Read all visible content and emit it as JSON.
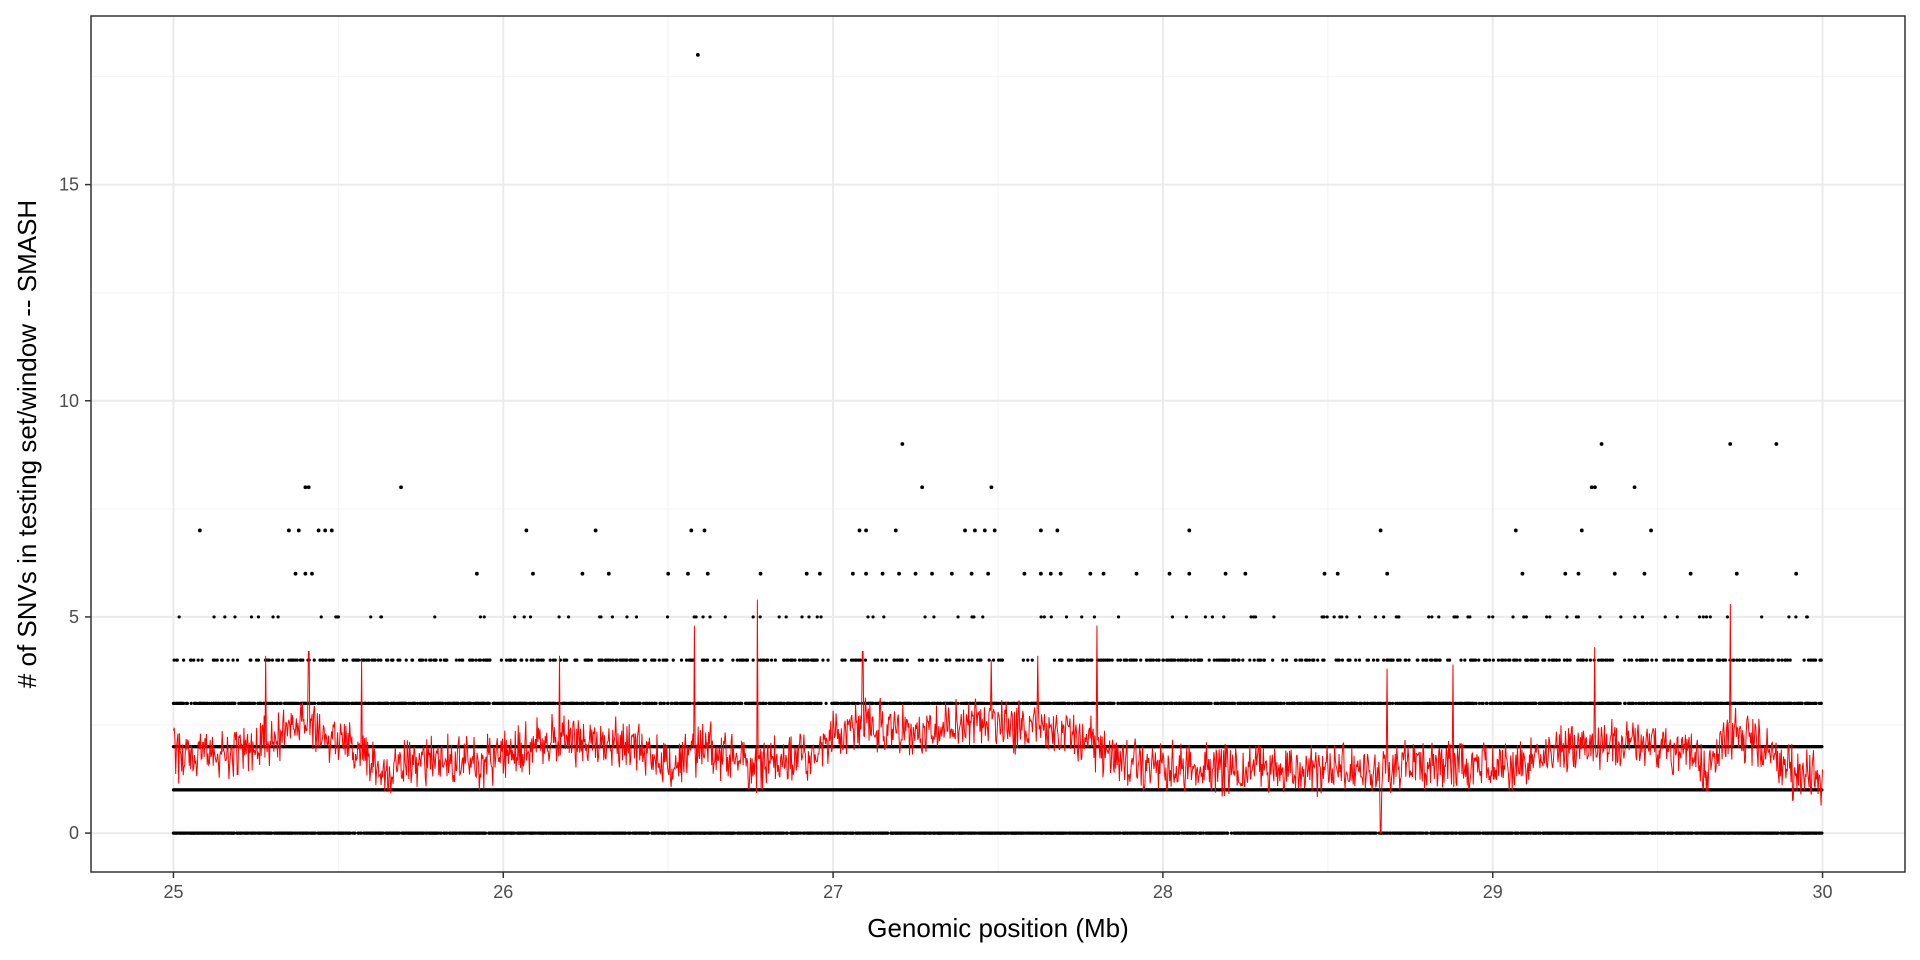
{
  "chart_data": {
    "type": "scatter",
    "title": "",
    "xlabel": "Genomic position (Mb)",
    "ylabel": "# of SNVs in testing set/window -- SMASH",
    "xlim": [
      24.75,
      30.25
    ],
    "ylim": [
      -0.9,
      18.9
    ],
    "x_ticks": [
      25,
      26,
      27,
      28,
      29,
      30
    ],
    "x_tick_labels": [
      "25",
      "26",
      "27",
      "28",
      "29",
      "30"
    ],
    "y_ticks": [
      0,
      5,
      10,
      15
    ],
    "y_tick_labels": [
      "0",
      "5",
      "10",
      "15"
    ],
    "grid": true,
    "legend": "none",
    "colors": {
      "points": "#000000",
      "smooth": "#ff0000",
      "panel_border": "#333333",
      "grid_major": "#ebebeb",
      "grid_minor": "#f5f5f5"
    },
    "series": [
      {
        "kind": "points",
        "description_points": "window SNV counts (integer values 0-9, plus one outlier at 18)",
        "outliers": [
          {
            "x": 26.59,
            "y": 18
          },
          {
            "x": 27.21,
            "y": 9
          },
          {
            "x": 29.33,
            "y": 9
          },
          {
            "x": 29.72,
            "y": 9
          },
          {
            "x": 29.86,
            "y": 9
          },
          {
            "x": 25.4,
            "y": 8
          },
          {
            "x": 25.41,
            "y": 8
          },
          {
            "x": 25.69,
            "y": 8
          },
          {
            "x": 27.27,
            "y": 8
          },
          {
            "x": 27.48,
            "y": 8
          },
          {
            "x": 29.3,
            "y": 8
          },
          {
            "x": 29.31,
            "y": 8
          },
          {
            "x": 29.43,
            "y": 8
          },
          {
            "x": 25.08,
            "y": 7
          },
          {
            "x": 25.35,
            "y": 7
          },
          {
            "x": 25.38,
            "y": 7
          },
          {
            "x": 25.44,
            "y": 7
          },
          {
            "x": 25.46,
            "y": 7
          },
          {
            "x": 25.48,
            "y": 7
          },
          {
            "x": 26.07,
            "y": 7
          },
          {
            "x": 26.28,
            "y": 7
          },
          {
            "x": 26.57,
            "y": 7
          },
          {
            "x": 26.61,
            "y": 7
          },
          {
            "x": 27.08,
            "y": 7
          },
          {
            "x": 27.1,
            "y": 7
          },
          {
            "x": 27.19,
            "y": 7
          },
          {
            "x": 27.4,
            "y": 7
          },
          {
            "x": 27.43,
            "y": 7
          },
          {
            "x": 27.46,
            "y": 7
          },
          {
            "x": 27.49,
            "y": 7
          },
          {
            "x": 27.63,
            "y": 7
          },
          {
            "x": 27.68,
            "y": 7
          },
          {
            "x": 28.08,
            "y": 7
          },
          {
            "x": 28.66,
            "y": 7
          },
          {
            "x": 29.07,
            "y": 7
          },
          {
            "x": 29.27,
            "y": 7
          },
          {
            "x": 29.48,
            "y": 7
          },
          {
            "x": 25.37,
            "y": 6
          },
          {
            "x": 25.4,
            "y": 6
          },
          {
            "x": 25.42,
            "y": 6
          },
          {
            "x": 25.92,
            "y": 6
          },
          {
            "x": 26.09,
            "y": 6
          },
          {
            "x": 26.24,
            "y": 6
          },
          {
            "x": 26.32,
            "y": 6
          },
          {
            "x": 26.5,
            "y": 6
          },
          {
            "x": 26.56,
            "y": 6
          },
          {
            "x": 26.62,
            "y": 6
          },
          {
            "x": 26.78,
            "y": 6
          },
          {
            "x": 26.92,
            "y": 6
          },
          {
            "x": 26.96,
            "y": 6
          },
          {
            "x": 27.06,
            "y": 6
          },
          {
            "x": 27.1,
            "y": 6
          },
          {
            "x": 27.15,
            "y": 6
          },
          {
            "x": 27.2,
            "y": 6
          },
          {
            "x": 27.25,
            "y": 6
          },
          {
            "x": 27.3,
            "y": 6
          },
          {
            "x": 27.36,
            "y": 6
          },
          {
            "x": 27.42,
            "y": 6
          },
          {
            "x": 27.47,
            "y": 6
          },
          {
            "x": 27.58,
            "y": 6
          },
          {
            "x": 27.63,
            "y": 6
          },
          {
            "x": 27.66,
            "y": 6
          },
          {
            "x": 27.69,
            "y": 6
          },
          {
            "x": 27.78,
            "y": 6
          },
          {
            "x": 27.82,
            "y": 6
          },
          {
            "x": 27.92,
            "y": 6
          },
          {
            "x": 28.02,
            "y": 6
          },
          {
            "x": 28.08,
            "y": 6
          },
          {
            "x": 28.19,
            "y": 6
          },
          {
            "x": 28.25,
            "y": 6
          },
          {
            "x": 28.49,
            "y": 6
          },
          {
            "x": 28.53,
            "y": 6
          },
          {
            "x": 28.68,
            "y": 6
          },
          {
            "x": 29.09,
            "y": 6
          },
          {
            "x": 29.22,
            "y": 6
          },
          {
            "x": 29.26,
            "y": 6
          },
          {
            "x": 29.37,
            "y": 6
          },
          {
            "x": 29.46,
            "y": 6
          },
          {
            "x": 29.6,
            "y": 6
          },
          {
            "x": 29.74,
            "y": 6
          },
          {
            "x": 29.92,
            "y": 6
          }
        ],
        "max_value": 9
      },
      {
        "kind": "line",
        "description_line": "smoothed window SNV count",
        "color": "#ff0000",
        "profile": [
          {
            "x": 25.0,
            "y": 1.8
          },
          {
            "x": 25.2,
            "y": 1.9
          },
          {
            "x": 25.35,
            "y": 2.3
          },
          {
            "x": 25.42,
            "y": 2.5
          },
          {
            "x": 25.55,
            "y": 1.9
          },
          {
            "x": 25.65,
            "y": 1.4
          },
          {
            "x": 25.75,
            "y": 1.7
          },
          {
            "x": 25.9,
            "y": 1.6
          },
          {
            "x": 26.0,
            "y": 1.8
          },
          {
            "x": 26.2,
            "y": 2.2
          },
          {
            "x": 26.4,
            "y": 2.0
          },
          {
            "x": 26.5,
            "y": 1.5
          },
          {
            "x": 26.6,
            "y": 2.0
          },
          {
            "x": 26.75,
            "y": 1.6
          },
          {
            "x": 26.9,
            "y": 1.7
          },
          {
            "x": 27.0,
            "y": 2.2
          },
          {
            "x": 27.1,
            "y": 2.6
          },
          {
            "x": 27.25,
            "y": 2.3
          },
          {
            "x": 27.45,
            "y": 2.6
          },
          {
            "x": 27.6,
            "y": 2.4
          },
          {
            "x": 27.75,
            "y": 2.3
          },
          {
            "x": 27.85,
            "y": 1.7
          },
          {
            "x": 28.0,
            "y": 1.5
          },
          {
            "x": 28.2,
            "y": 1.5
          },
          {
            "x": 28.5,
            "y": 1.5
          },
          {
            "x": 28.7,
            "y": 1.5
          },
          {
            "x": 28.9,
            "y": 1.6
          },
          {
            "x": 29.0,
            "y": 1.5
          },
          {
            "x": 29.1,
            "y": 1.6
          },
          {
            "x": 29.2,
            "y": 1.9
          },
          {
            "x": 29.3,
            "y": 2.1
          },
          {
            "x": 29.45,
            "y": 2.0
          },
          {
            "x": 29.6,
            "y": 1.9
          },
          {
            "x": 29.65,
            "y": 1.3
          },
          {
            "x": 29.72,
            "y": 2.4
          },
          {
            "x": 29.85,
            "y": 1.8
          },
          {
            "x": 29.92,
            "y": 1.3
          },
          {
            "x": 30.0,
            "y": 1.3
          }
        ],
        "spikes": [
          {
            "x": 25.28,
            "y": 4.1
          },
          {
            "x": 25.41,
            "y": 4.2
          },
          {
            "x": 25.57,
            "y": 4.0
          },
          {
            "x": 26.17,
            "y": 4.1
          },
          {
            "x": 26.58,
            "y": 4.8
          },
          {
            "x": 26.77,
            "y": 5.4
          },
          {
            "x": 27.09,
            "y": 4.2
          },
          {
            "x": 27.48,
            "y": 4.0
          },
          {
            "x": 27.62,
            "y": 4.1
          },
          {
            "x": 27.8,
            "y": 4.8
          },
          {
            "x": 28.66,
            "y": 0.0
          },
          {
            "x": 28.68,
            "y": 3.8
          },
          {
            "x": 28.88,
            "y": 3.9
          },
          {
            "x": 29.31,
            "y": 4.3
          },
          {
            "x": 29.72,
            "y": 5.3
          }
        ]
      }
    ]
  }
}
